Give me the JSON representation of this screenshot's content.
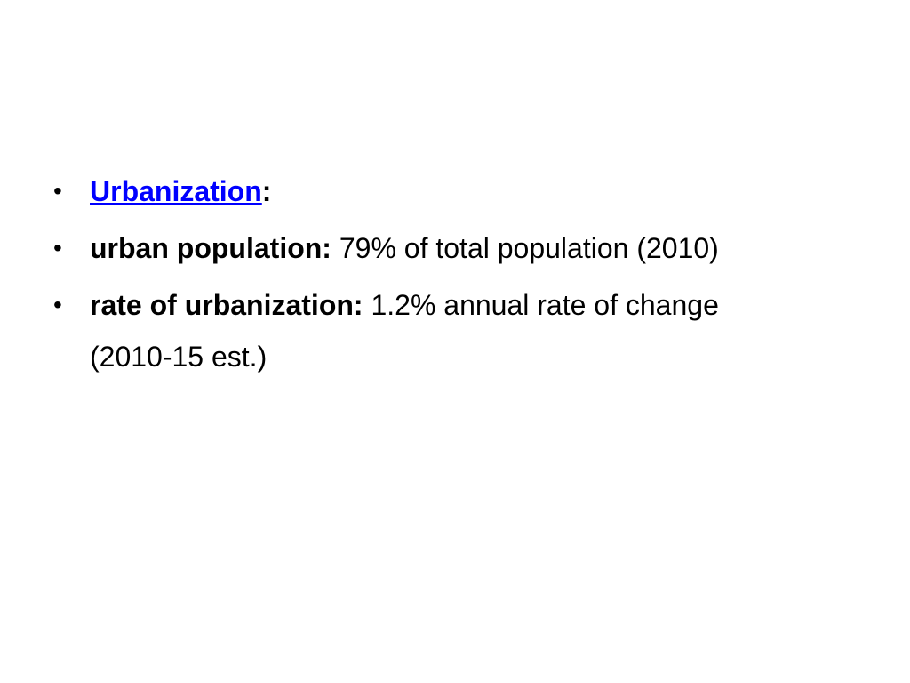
{
  "bullets": [
    {
      "link_text": "Urbanization",
      "suffix": ":"
    },
    {
      "label": "urban population:",
      "text": " 79% of total population (2010)"
    },
    {
      "label": "rate of urbanization:",
      "text": " 1.2% annual rate of change (2010-15 est.)"
    }
  ],
  "colors": {
    "link": "#0000ff",
    "text": "#000000",
    "background": "#ffffff"
  },
  "icons": {
    "bullet": "bullet-dot"
  }
}
